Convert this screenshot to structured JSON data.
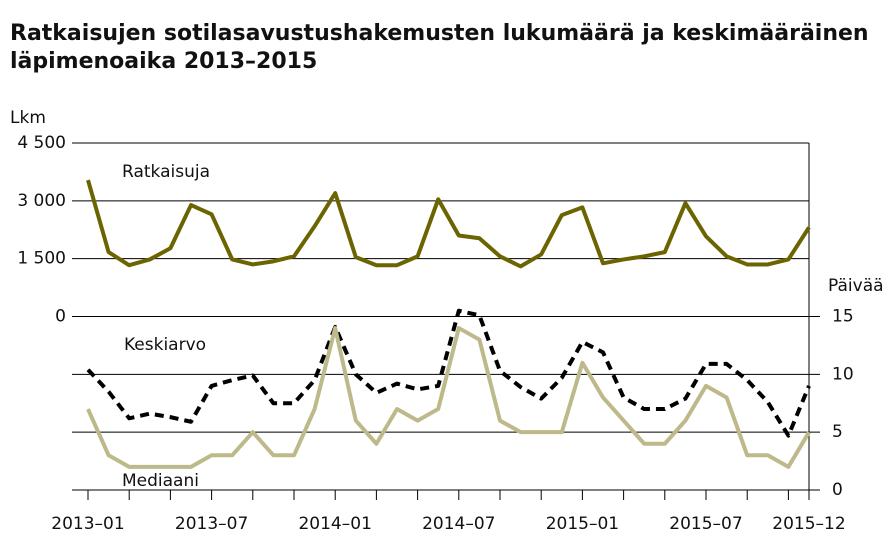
{
  "chart_data": {
    "type": "line",
    "title": [
      "Ratkaisujen sotilasavustushakemusten lukumäärä ja keskimääräinen",
      "läpimenoaika 2013–2015"
    ],
    "ylabel": "Lkm",
    "y2label": "Päivää",
    "categories": [
      "2013–01",
      null,
      null,
      null,
      null,
      null,
      "2013–07",
      null,
      null,
      null,
      null,
      null,
      "2014–01",
      null,
      null,
      null,
      null,
      null,
      "2014–07",
      null,
      null,
      null,
      null,
      null,
      "2015–01",
      null,
      null,
      null,
      null,
      null,
      "2015–07",
      null,
      null,
      null,
      null,
      "2015–12"
    ],
    "ylim": [
      -4500,
      4500
    ],
    "yticks": [
      {
        "value": 0,
        "label": "0"
      },
      {
        "value": 1500,
        "label": "1 500"
      },
      {
        "value": 3000,
        "label": "3 000"
      },
      {
        "value": 4500,
        "label": "4 500"
      }
    ],
    "y2lim": [
      0,
      30
    ],
    "y2ticks": [
      0,
      5,
      10,
      15
    ],
    "grid": true,
    "series": [
      {
        "name": "Ratkaisuja",
        "color": "#6b6400",
        "dash": false,
        "values": [
          3540,
          1670,
          1330,
          1480,
          1770,
          2890,
          2650,
          1480,
          1350,
          1430,
          1560,
          2340,
          3200,
          1540,
          1330,
          1330,
          1560,
          3040,
          2100,
          2030,
          1560,
          1300,
          1610,
          2630,
          2830,
          1380,
          1480,
          1560,
          1670,
          2940,
          2080,
          1560,
          1350,
          1350,
          1480,
          2310
        ]
      },
      {
        "name": "Keskiarvo",
        "color": "#000000",
        "dash": true,
        "axis": "y2",
        "values": [
          10.4,
          8.5,
          6.2,
          6.6,
          6.3,
          5.9,
          9,
          9.5,
          9.9,
          7.5,
          7.5,
          9.5,
          14.1,
          10,
          8.4,
          9.2,
          8.7,
          9,
          15.5,
          15.1,
          10.3,
          8.9,
          7.9,
          9.7,
          12.8,
          11.9,
          8,
          7,
          7,
          7.9,
          10.9,
          10.9,
          9.5,
          7.6,
          4.7,
          9
        ]
      },
      {
        "name": "Mediaani",
        "color": "#bdb98a",
        "dash": false,
        "axis": "y2",
        "values": [
          7,
          3,
          2,
          2,
          2,
          2,
          3,
          3,
          5,
          3,
          3,
          7,
          14,
          6,
          4,
          7,
          6,
          7,
          14,
          13,
          6,
          5,
          5,
          5,
          11,
          8,
          6,
          4,
          4,
          6,
          9,
          8,
          3,
          3,
          2,
          5
        ]
      }
    ]
  }
}
